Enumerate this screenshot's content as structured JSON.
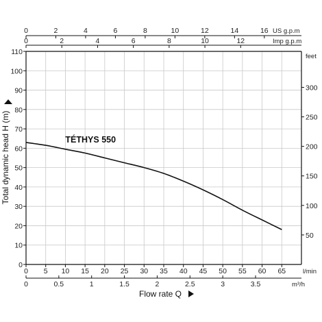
{
  "chart_data": {
    "type": "line",
    "series": [
      {
        "name": "TÉTHYS 550",
        "x": [
          0,
          5,
          10,
          15,
          20,
          25,
          30,
          35,
          40,
          45,
          50,
          55,
          60,
          65
        ],
        "y": [
          63,
          61.5,
          59.5,
          57.5,
          55,
          52.5,
          50,
          47,
          43,
          38.5,
          33.5,
          28,
          23,
          18
        ]
      }
    ],
    "xlabel": "Flow rate Q",
    "ylabel": "Total dynamic head H (m)",
    "xlim": [
      0,
      70
    ],
    "ylim": [
      0,
      110
    ],
    "grid": true,
    "axes": {
      "bottom": {
        "ticks": [
          "0",
          "5",
          "10",
          "15",
          "20",
          "25",
          "30",
          "35",
          "40",
          "45",
          "50",
          "55",
          "60",
          "65"
        ],
        "unit": "l/min"
      },
      "bottom2": {
        "ticks": [
          "0",
          "0.5",
          "1",
          "1.5",
          "2",
          "2.5",
          "3",
          "3.5"
        ],
        "unit": "m³/h"
      },
      "top": {
        "ticks": [
          "0",
          "2",
          "4",
          "6",
          "8",
          "10",
          "12",
          "14",
          "16"
        ],
        "unit": "US g.p.m"
      },
      "top2": {
        "ticks": [
          "0",
          "2",
          "4",
          "6",
          "8",
          "10",
          "12"
        ],
        "unit": "Imp g.p.m"
      },
      "left": {
        "ticks": [
          "0",
          "10",
          "20",
          "30",
          "40",
          "50",
          "60",
          "70",
          "80",
          "90",
          "100",
          "110"
        ]
      },
      "right": {
        "ticks": [
          "50",
          "100",
          "150",
          "200",
          "250",
          "300"
        ],
        "unit": "feet"
      }
    }
  }
}
